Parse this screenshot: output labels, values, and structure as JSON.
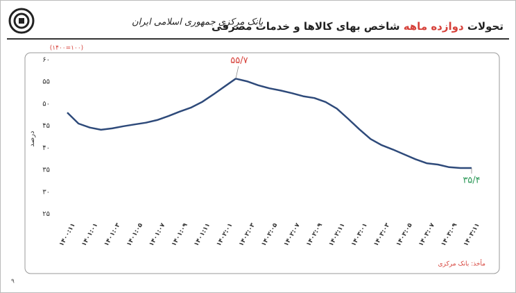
{
  "header": {
    "logo_text": "بانک مرکزی جمهوری اسلامی ایران",
    "title_parts": [
      "تحولات ",
      "دوازده ماهه",
      " شاخص بهای کالاها و خدمات مصرفی"
    ]
  },
  "chart_data": {
    "type": "line",
    "unit": "(۱۴۰۰=۱۰۰)",
    "y_label": "درصد",
    "color": "#2e4a7a",
    "categories": [
      "۱۴۰۰:۱۱",
      null,
      "۱۴۰۱:۰۱",
      null,
      "۱۴۰۱:۰۳",
      null,
      "۱۴۰۱:۰۵",
      null,
      "۱۴۰۱:۰۷",
      null,
      "۱۴۰۱:۰۹",
      null,
      "۱۴۰۱:۱۱",
      null,
      "۱۴۰۲:۰۱",
      null,
      "۱۴۰۲:۰۳",
      null,
      "۱۴۰۲:۰۵",
      null,
      "۱۴۰۲:۰۷",
      null,
      "۱۴۰۲:۰۹",
      null,
      "۱۴۰۲:۱۱",
      null,
      "۱۴۰۳:۰۱",
      null,
      "۱۴۰۳:۰۳",
      null,
      "۱۴۰۳:۰۵",
      null,
      "۱۴۰۳:۰۷",
      null,
      "۱۴۰۳:۰۹",
      null,
      "۱۴۰۳:۱۱"
    ],
    "values": [
      48.0,
      45.5,
      44.6,
      44.1,
      44.4,
      44.9,
      45.3,
      45.7,
      46.3,
      47.2,
      48.2,
      49.1,
      50.4,
      52.1,
      53.9,
      55.7,
      55.1,
      54.2,
      53.5,
      53.0,
      52.4,
      51.7,
      51.3,
      50.4,
      48.9,
      46.6,
      44.2,
      42.0,
      40.6,
      39.6,
      38.5,
      37.4,
      36.5,
      36.2,
      35.6,
      35.4,
      35.4
    ],
    "value_labels": [
      null,
      null,
      null,
      null,
      null,
      null,
      null,
      null,
      null,
      null,
      null,
      null,
      null,
      null,
      null,
      "۵۵/۷",
      null,
      null,
      null,
      null,
      null,
      null,
      null,
      null,
      null,
      null,
      null,
      null,
      null,
      null,
      null,
      null,
      null,
      null,
      null,
      null,
      "۳۵/۴"
    ],
    "value_label_colors": [
      null,
      null,
      null,
      null,
      null,
      null,
      null,
      null,
      null,
      null,
      null,
      null,
      null,
      null,
      null,
      "#d6413a",
      null,
      null,
      null,
      null,
      null,
      null,
      null,
      null,
      null,
      null,
      null,
      null,
      null,
      null,
      null,
      null,
      null,
      null,
      null,
      null,
      "#2f9a5a"
    ],
    "ylim": [
      25,
      60
    ],
    "yticks": [
      {
        "value": 25,
        "label": "۲۵"
      },
      {
        "value": 30,
        "label": "۳۰"
      },
      {
        "value": 35,
        "label": "۳۵"
      },
      {
        "value": 40,
        "label": "۴۰"
      },
      {
        "value": 45,
        "label": "۴۵"
      },
      {
        "value": 50,
        "label": "۵۰"
      },
      {
        "value": 55,
        "label": "۵۵"
      },
      {
        "value": 60,
        "label": "۶۰"
      }
    ],
    "grid": false
  },
  "footer": {
    "source": "مأخذ: بانک مرکزی",
    "page": "۹"
  }
}
